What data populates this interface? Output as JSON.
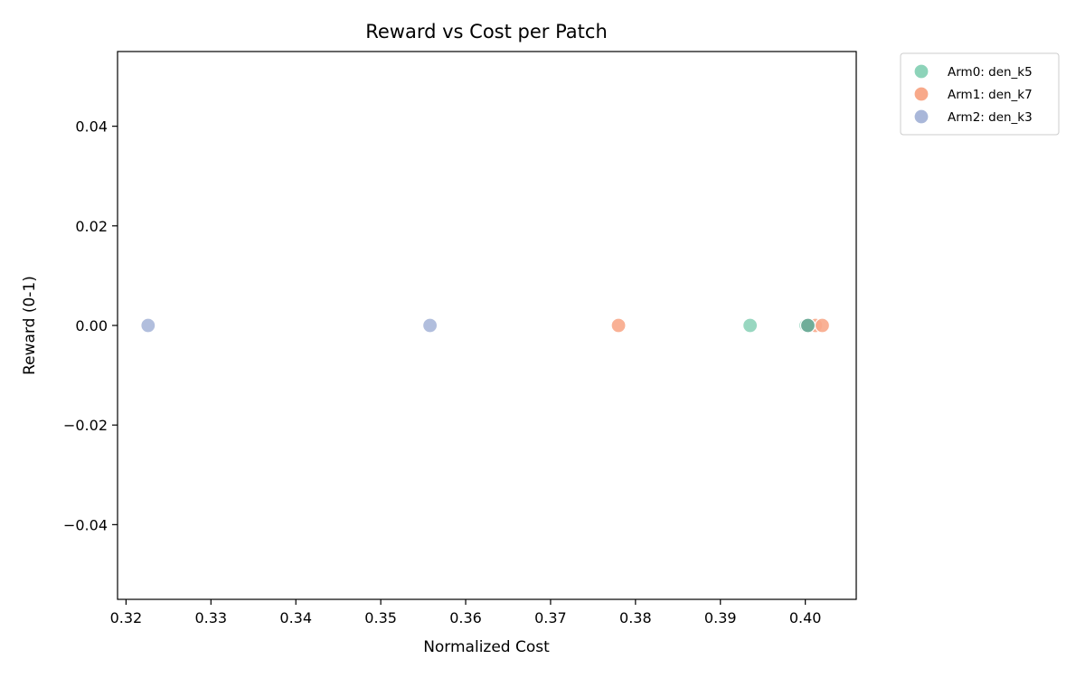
{
  "chart_data": {
    "type": "scatter",
    "title": "Reward vs Cost per Patch",
    "xlabel": "Normalized Cost",
    "ylabel": "Reward (0-1)",
    "xlim": [
      0.319,
      0.406
    ],
    "ylim": [
      -0.055,
      0.055
    ],
    "xticks": [
      0.32,
      0.33,
      0.34,
      0.35,
      0.36,
      0.37,
      0.38,
      0.39,
      0.4
    ],
    "xtick_labels": [
      "0.32",
      "0.33",
      "0.34",
      "0.35",
      "0.36",
      "0.37",
      "0.38",
      "0.39",
      "0.40"
    ],
    "yticks": [
      0.04,
      0.02,
      0.0,
      -0.02,
      -0.04
    ],
    "ytick_labels": [
      "0.04",
      "0.02",
      "0.00",
      "−0.02",
      "−0.04"
    ],
    "grid": false,
    "legend_position": "outside-top-right",
    "series": [
      {
        "name": "Arm0: den_k5",
        "color": "#8dd3b9",
        "points": [
          {
            "x": 0.3935,
            "y": 0.0
          },
          {
            "x": 0.4001,
            "y": 0.0
          }
        ]
      },
      {
        "name": "Arm1: den_k7",
        "color": "#f8a98a",
        "points": [
          {
            "x": 0.378,
            "y": 0.0
          },
          {
            "x": 0.4012,
            "y": 0.0
          },
          {
            "x": 0.402,
            "y": 0.0
          }
        ]
      },
      {
        "name": "Arm2: den_k3",
        "color": "#a9b7d9",
        "points": [
          {
            "x": 0.3226,
            "y": 0.0
          },
          {
            "x": 0.3558,
            "y": 0.0
          }
        ]
      }
    ],
    "overlap_points": [
      {
        "x": 0.4003,
        "y": 0.0,
        "color": "#6fad99"
      }
    ]
  }
}
